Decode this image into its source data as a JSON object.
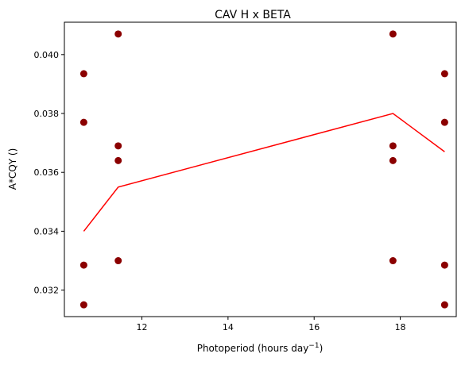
{
  "chart_data": {
    "type": "scatter",
    "title": "CAV H x BETA",
    "xlabel_main": "Photoperiod (hours day",
    "xlabel_sup": "−1",
    "xlabel_end": ")",
    "ylabel": "A*CQY ()",
    "xlim": [
      10.2,
      19.3
    ],
    "ylim": [
      0.0311,
      0.0411
    ],
    "xticks": [
      12,
      14,
      16,
      18
    ],
    "xtick_labels": [
      "12",
      "14",
      "16",
      "18"
    ],
    "yticks": [
      0.032,
      0.034,
      0.036,
      0.038,
      0.04
    ],
    "ytick_labels": [
      "0.032",
      "0.034",
      "0.036",
      "0.038",
      "0.040"
    ],
    "grid": false,
    "marker_color": "#8b0000",
    "line_color": "#ff0000",
    "points": [
      {
        "x": 10.65,
        "y": 0.03935
      },
      {
        "x": 10.65,
        "y": 0.0377
      },
      {
        "x": 10.65,
        "y": 0.03285
      },
      {
        "x": 10.65,
        "y": 0.0315
      },
      {
        "x": 11.45,
        "y": 0.0407
      },
      {
        "x": 11.45,
        "y": 0.0369
      },
      {
        "x": 11.45,
        "y": 0.0364
      },
      {
        "x": 11.45,
        "y": 0.033
      },
      {
        "x": 17.83,
        "y": 0.0407
      },
      {
        "x": 17.83,
        "y": 0.0369
      },
      {
        "x": 17.83,
        "y": 0.0364
      },
      {
        "x": 17.83,
        "y": 0.033
      },
      {
        "x": 19.03,
        "y": 0.03935
      },
      {
        "x": 19.03,
        "y": 0.0377
      },
      {
        "x": 19.03,
        "y": 0.03285
      },
      {
        "x": 19.03,
        "y": 0.0315
      }
    ],
    "series": [
      {
        "type": "line",
        "x": [
          10.65,
          11.45,
          17.83,
          19.03
        ],
        "y": [
          0.034,
          0.0355,
          0.038,
          0.0367
        ]
      }
    ]
  }
}
